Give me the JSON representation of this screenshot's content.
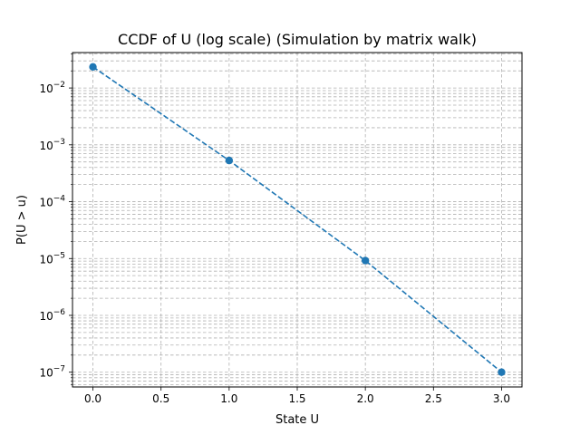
{
  "chart_data": {
    "type": "line",
    "title": "CCDF of U (log scale) (Simulation by matrix walk)",
    "xlabel": "State U",
    "ylabel": "P(U > u)",
    "xlim": [
      -0.15,
      3.15
    ],
    "ylim": [
      5.5e-08,
      0.042
    ],
    "yscale": "log",
    "grid": true,
    "grid_style": "dashed",
    "color": "#1f77b4",
    "line_style": "dashed",
    "marker": "circle",
    "x_ticks": [
      0.0,
      0.5,
      1.0,
      1.5,
      2.0,
      2.5,
      3.0
    ],
    "x_tick_labels": [
      "0.0",
      "0.5",
      "1.0",
      "1.5",
      "2.0",
      "2.5",
      "3.0"
    ],
    "y_ticks": [
      1e-07,
      1e-06,
      1e-05,
      0.0001,
      0.001,
      0.01
    ],
    "y_tick_labels": [
      {
        "base": "10",
        "exp": "−7"
      },
      {
        "base": "10",
        "exp": "−6"
      },
      {
        "base": "10",
        "exp": "−5"
      },
      {
        "base": "10",
        "exp": "−4"
      },
      {
        "base": "10",
        "exp": "−3"
      },
      {
        "base": "10",
        "exp": "−2"
      }
    ],
    "series": [
      {
        "x": [
          0,
          1,
          2,
          3
        ],
        "values": [
          0.0235,
          0.00053,
          9.2e-06,
          1e-07
        ]
      }
    ]
  }
}
